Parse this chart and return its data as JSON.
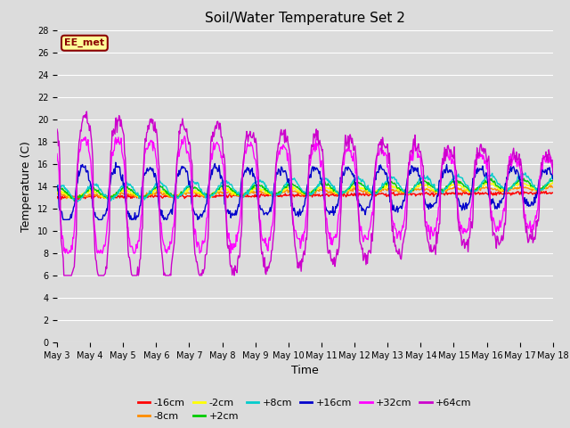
{
  "title": "Soil/Water Temperature Set 2",
  "xlabel": "Time",
  "ylabel": "Temperature (C)",
  "ylim": [
    0,
    28
  ],
  "yticks": [
    0,
    2,
    4,
    6,
    8,
    10,
    12,
    14,
    16,
    18,
    20,
    22,
    24,
    26,
    28
  ],
  "background_color": "#dcdcdc",
  "plot_bg_color": "#dcdcdc",
  "grid_color": "#ffffff",
  "series_order": [
    "-16cm",
    "-8cm",
    "-2cm",
    "+2cm",
    "+8cm",
    "+16cm",
    "+32cm",
    "+64cm"
  ],
  "series": {
    "-16cm": {
      "color": "#ff0000",
      "linewidth": 1.0
    },
    "-8cm": {
      "color": "#ff8c00",
      "linewidth": 1.0
    },
    "-2cm": {
      "color": "#ffff00",
      "linewidth": 1.0
    },
    "+2cm": {
      "color": "#00cc00",
      "linewidth": 1.0
    },
    "+8cm": {
      "color": "#00cccc",
      "linewidth": 1.0
    },
    "+16cm": {
      "color": "#0000cc",
      "linewidth": 1.0
    },
    "+32cm": {
      "color": "#ff00ff",
      "linewidth": 1.0
    },
    "+64cm": {
      "color": "#cc00cc",
      "linewidth": 1.0
    }
  },
  "xtick_labels": [
    "May 3",
    "May 4",
    "May 5",
    "May 6",
    "May 7",
    "May 8",
    "May 9",
    "May 10",
    "May 11",
    "May 12",
    "May 13",
    "May 14",
    "May 15",
    "May 16",
    "May 17",
    "May 18"
  ],
  "annotation_text": "EE_met",
  "annotation_color": "#8b0000",
  "annotation_bg": "#ffff99",
  "legend_row1": [
    "-16cm",
    "-8cm",
    "-2cm",
    "+2cm",
    "+8cm",
    "+16cm"
  ],
  "legend_row2": [
    "+32cm",
    "+64cm"
  ]
}
